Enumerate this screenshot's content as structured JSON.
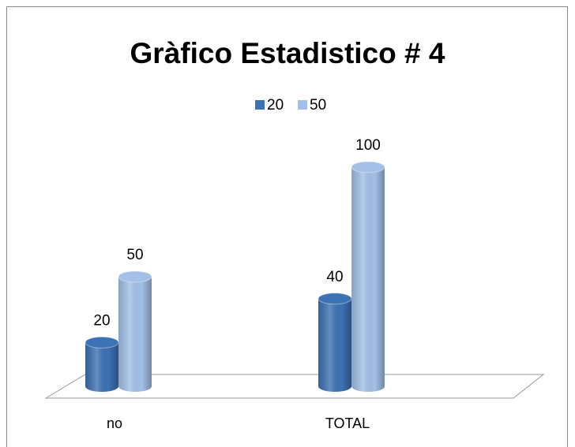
{
  "chart_data": {
    "type": "bar",
    "title": "Gràfico Estadistico # 4",
    "categories": [
      "no",
      "TOTAL"
    ],
    "series": [
      {
        "name": "20",
        "color": "#3d72b4",
        "values": [
          20,
          40
        ]
      },
      {
        "name": "50",
        "color": "#a3c1e8",
        "values": [
          50,
          100
        ]
      }
    ]
  }
}
